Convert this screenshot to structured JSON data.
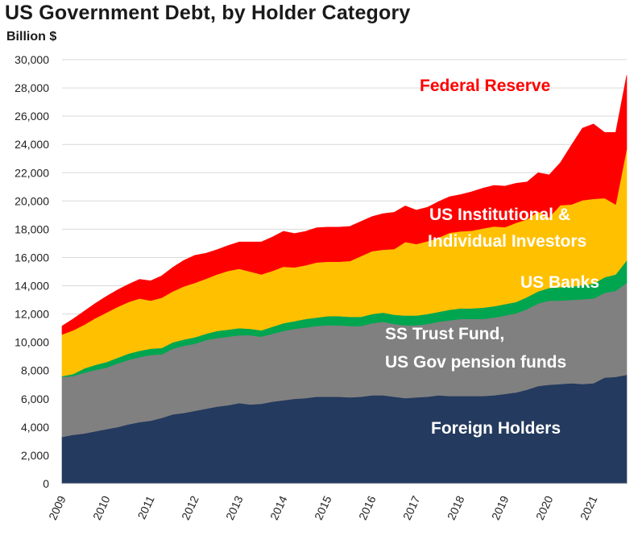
{
  "chart_data": {
    "type": "area",
    "stacked": true,
    "title": "US Government Debt, by Holder Category",
    "unit_label": "Billion $",
    "xlabel": "",
    "ylabel": "Billion $",
    "ylim": [
      0,
      30000
    ],
    "y_ticks": [
      "0",
      "2,000",
      "4,000",
      "6,000",
      "8,000",
      "10,000",
      "12,000",
      "14,000",
      "16,000",
      "18,000",
      "20,000",
      "22,000",
      "24,000",
      "26,000",
      "28,000",
      "30,000"
    ],
    "x_ticks": [
      "2009",
      "2010",
      "2011",
      "2012",
      "2013",
      "2014",
      "2015",
      "2016",
      "2017",
      "2018",
      "2019",
      "2020",
      "2021"
    ],
    "x": [
      2009.0,
      2009.25,
      2009.5,
      2009.75,
      2010.0,
      2010.25,
      2010.5,
      2010.75,
      2011.0,
      2011.25,
      2011.5,
      2011.75,
      2012.0,
      2012.25,
      2012.5,
      2012.75,
      2013.0,
      2013.25,
      2013.5,
      2013.75,
      2014.0,
      2014.25,
      2014.5,
      2014.75,
      2015.0,
      2015.25,
      2015.5,
      2015.75,
      2016.0,
      2016.25,
      2016.5,
      2016.75,
      2017.0,
      2017.25,
      2017.5,
      2017.75,
      2018.0,
      2018.25,
      2018.5,
      2018.75,
      2019.0,
      2019.25,
      2019.5,
      2019.75,
      2020.0,
      2020.25,
      2020.5,
      2020.75,
      2021.0,
      2021.25,
      2021.5,
      2021.75
    ],
    "series": [
      {
        "name": "Foreign Holders",
        "color": "#243a5e",
        "values": [
          3300,
          3450,
          3550,
          3700,
          3850,
          4000,
          4200,
          4350,
          4450,
          4650,
          4900,
          5000,
          5150,
          5300,
          5450,
          5550,
          5700,
          5600,
          5650,
          5800,
          5900,
          6000,
          6050,
          6150,
          6150,
          6150,
          6100,
          6150,
          6250,
          6250,
          6150,
          6050,
          6100,
          6150,
          6250,
          6200,
          6200,
          6200,
          6200,
          6250,
          6350,
          6450,
          6650,
          6900,
          7000,
          7050,
          7100,
          7050,
          7100,
          7500,
          7550,
          7700
        ]
      },
      {
        "name": "SS Trust Fund, US Gov pension funds",
        "color": "#808080",
        "values": [
          4250,
          4150,
          4300,
          4350,
          4350,
          4500,
          4550,
          4600,
          4650,
          4500,
          4650,
          4750,
          4750,
          4850,
          4850,
          4850,
          4800,
          4900,
          4750,
          4800,
          4900,
          4950,
          5000,
          5000,
          5050,
          5050,
          5050,
          5000,
          5100,
          5200,
          5150,
          5150,
          5100,
          5150,
          5200,
          5350,
          5450,
          5450,
          5450,
          5500,
          5550,
          5600,
          5700,
          5850,
          5950,
          5900,
          5900,
          6000,
          6000,
          6000,
          6100,
          6500
        ]
      },
      {
        "name": "US Banks",
        "color": "#00a550",
        "values": [
          50,
          150,
          300,
          350,
          400,
          400,
          450,
          450,
          450,
          450,
          450,
          450,
          450,
          450,
          500,
          500,
          500,
          450,
          450,
          500,
          550,
          550,
          600,
          600,
          650,
          650,
          650,
          650,
          650,
          650,
          650,
          700,
          700,
          700,
          700,
          750,
          750,
          750,
          800,
          800,
          800,
          800,
          850,
          850,
          900,
          950,
          950,
          1000,
          1050,
          1100,
          1150,
          1600
        ]
      },
      {
        "name": "US Institutional & Individual Investors",
        "color": "#ffc000",
        "values": [
          2950,
          3100,
          3100,
          3300,
          3500,
          3600,
          3650,
          3700,
          3400,
          3550,
          3600,
          3750,
          3850,
          3900,
          4000,
          4150,
          4200,
          4050,
          3950,
          3950,
          4000,
          3800,
          3800,
          3900,
          3850,
          3850,
          3950,
          4300,
          4450,
          4450,
          4650,
          5200,
          5050,
          5150,
          5250,
          5450,
          5450,
          5500,
          5600,
          5650,
          5450,
          5600,
          5500,
          5650,
          5000,
          5800,
          5800,
          6000,
          6000,
          5600,
          4950,
          7900
        ]
      },
      {
        "name": "Federal Reserve",
        "color": "#ff0000",
        "values": [
          600,
          800,
          950,
          1050,
          1150,
          1200,
          1250,
          1350,
          1400,
          1550,
          1700,
          1850,
          1950,
          1800,
          1750,
          1800,
          1900,
          2100,
          2300,
          2400,
          2500,
          2400,
          2400,
          2450,
          2450,
          2450,
          2450,
          2450,
          2450,
          2550,
          2600,
          2550,
          2400,
          2400,
          2550,
          2550,
          2600,
          2750,
          2850,
          2900,
          2900,
          2800,
          2650,
          2750,
          3000,
          3000,
          4200,
          5100,
          5300,
          4650,
          5100,
          5200
        ]
      }
    ],
    "annotations": [
      {
        "text": "Federal Reserve",
        "color": "#ff0000"
      },
      {
        "text": "US Institutional &",
        "color": "#ffffff"
      },
      {
        "text": "Individual Investors",
        "color": "#ffffff"
      },
      {
        "text": "US Banks",
        "color": "#ffffff"
      },
      {
        "text": "SS Trust Fund,",
        "color": "#ffffff"
      },
      {
        "text": "US Gov pension funds",
        "color": "#ffffff"
      },
      {
        "text": "Foreign Holders",
        "color": "#ffffff"
      }
    ],
    "grid": true,
    "legend": "none"
  }
}
